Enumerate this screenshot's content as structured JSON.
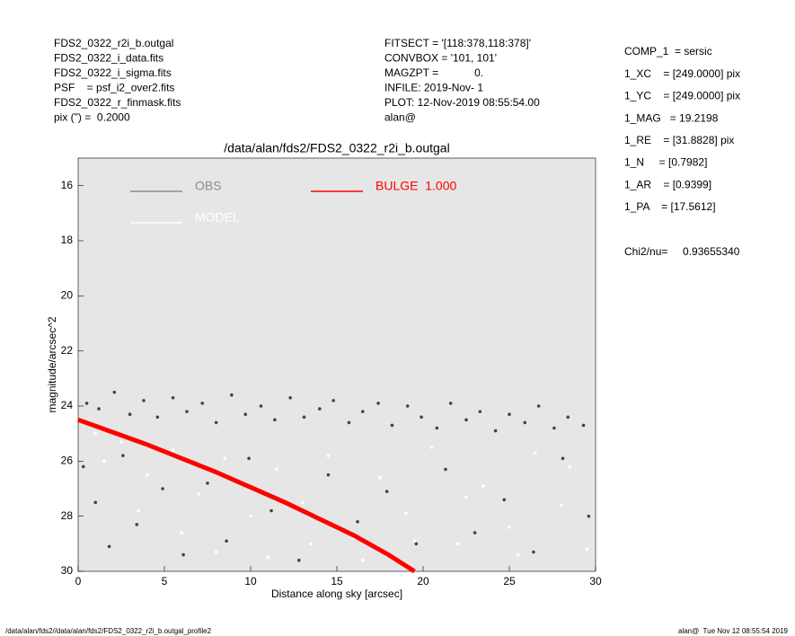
{
  "header_left": [
    "FDS2_0322_r2i_b.outgal",
    "FDS2_0322_i_data.fits",
    "FDS2_0322_i_sigma.fits",
    "PSF    = psf_i2_over2.fits",
    "FDS2_0322_r_finmask.fits",
    "pix (\") =  0.2000"
  ],
  "header_middle": [
    "FITSECT = '[118:378,118:378]'",
    "CONVBOX = '101, 101'",
    "MAGZPT =            0.",
    "INFILE: 2019-Nov- 1",
    "PLOT: 12-Nov-2019 08:55:54.00",
    "alan@"
  ],
  "fit_params": [
    "COMP_1  = sersic",
    "1_XC    = [249.0000] pix",
    "1_YC    = [249.0000] pix",
    "1_MAG   = 19.2198",
    "1_RE    = [31.8828] pix",
    "1_N     = [0.7982]",
    "1_AR    = [0.9399]",
    "1_PA    = [17.5612]"
  ],
  "chi2": "Chi2/nu=     0.93655340",
  "footer": {
    "left": "/data/alan/fds2//data/alan/fds2/FDS2_0322_r2i_b.outgal_profile2",
    "right": "alan@  Tue Nov 12 08:55:54 2019"
  },
  "chart_data": {
    "type": "scatter",
    "title": "/data/alan/fds2/FDS2_0322_r2i_b.outgal",
    "x_label": "Distance along sky [arcsec]",
    "y_label": "magnitude/arcsec^2",
    "xlim": [
      0,
      30
    ],
    "xticks": [
      0,
      5,
      10,
      15,
      20,
      25,
      30
    ],
    "ylim": [
      15,
      30
    ],
    "yticks": [
      16,
      18,
      20,
      22,
      24,
      26,
      28,
      30
    ],
    "invert_y": true,
    "background": "#e6e6e6",
    "series": [
      {
        "name": "OBS",
        "color": "#8c8c8c",
        "point_color": "#444444",
        "style": "points",
        "x": [
          0.5,
          1.2,
          2.1,
          3.0,
          3.8,
          4.6,
          5.5,
          6.3,
          7.2,
          8.0,
          8.9,
          9.7,
          10.6,
          11.4,
          12.3,
          13.1,
          14.0,
          14.8,
          15.7,
          16.5,
          17.4,
          18.2,
          19.1,
          19.9,
          20.8,
          21.6,
          22.5,
          23.3,
          24.2,
          25.0,
          25.9,
          26.7,
          27.6,
          28.4,
          29.3,
          0.3,
          1.0,
          1.8,
          2.6,
          3.4,
          4.9,
          6.1,
          7.5,
          8.6,
          9.9,
          11.2,
          12.8,
          14.5,
          16.2,
          17.9,
          19.6,
          21.3,
          23.0,
          24.7,
          26.4,
          28.1,
          29.6
        ],
        "values": [
          23.9,
          24.1,
          23.5,
          24.3,
          23.8,
          24.4,
          23.7,
          24.2,
          23.9,
          24.6,
          23.6,
          24.3,
          24.0,
          24.5,
          23.7,
          24.4,
          24.1,
          23.8,
          24.6,
          24.2,
          23.9,
          24.7,
          24.0,
          24.4,
          24.8,
          23.9,
          24.5,
          24.2,
          24.9,
          24.3,
          24.6,
          24.0,
          24.8,
          24.4,
          24.7,
          26.2,
          27.5,
          29.1,
          25.8,
          28.3,
          27.0,
          29.4,
          26.8,
          28.9,
          25.9,
          27.8,
          29.6,
          26.5,
          28.2,
          27.1,
          29.0,
          26.3,
          28.6,
          27.4,
          29.3,
          25.9,
          28.0
        ]
      },
      {
        "name": "MODEL",
        "color": "#ffffff",
        "point_color": "#ffffff",
        "style": "points",
        "x": [
          1,
          2.5,
          4,
          5.5,
          7,
          8.5,
          10,
          11.5,
          13,
          14.5,
          16,
          17.5,
          19,
          20.5,
          22,
          23.5,
          25,
          26.5,
          28,
          29.5,
          1.5,
          3.5,
          6,
          8,
          11,
          13.5,
          16.5,
          19.5,
          22.5,
          25.5,
          28.5
        ],
        "values": [
          25.0,
          25.3,
          26.5,
          25.6,
          27.2,
          25.9,
          28.0,
          26.3,
          27.5,
          25.8,
          28.8,
          26.6,
          27.9,
          25.5,
          29.0,
          26.9,
          28.4,
          25.7,
          27.6,
          29.2,
          26.0,
          27.8,
          28.6,
          29.3,
          29.5,
          29.0,
          29.6,
          28.9,
          27.3,
          29.4,
          26.2
        ]
      },
      {
        "name": "BULGE  1.000",
        "color": "#ff0000",
        "point_color": "#ff0000",
        "style": "line",
        "x": [
          0,
          2,
          4,
          6,
          8,
          10,
          12,
          14,
          16,
          18,
          19.5
        ],
        "values": [
          24.5,
          24.95,
          25.4,
          25.9,
          26.4,
          26.95,
          27.5,
          28.1,
          28.7,
          29.4,
          30.0
        ]
      }
    ]
  }
}
